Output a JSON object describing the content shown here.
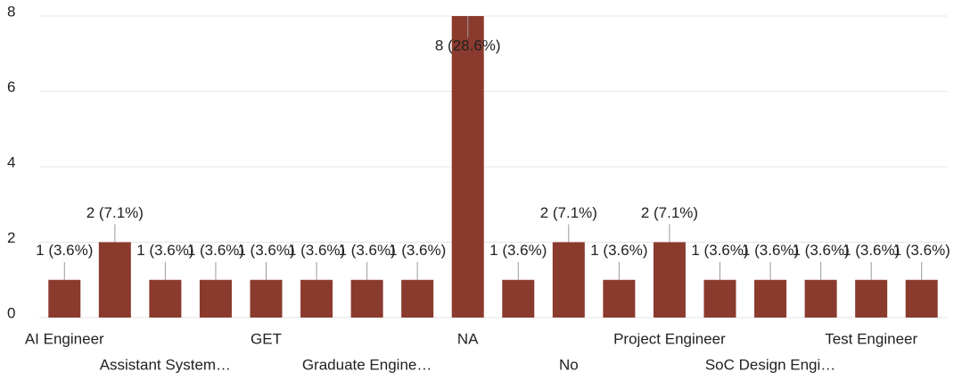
{
  "chart_data": {
    "type": "bar",
    "categories": [
      "AI Engineer",
      null,
      "Assistant System…",
      null,
      "GET",
      null,
      "Graduate Engine…",
      null,
      "NA",
      null,
      "No",
      null,
      "Project Engineer",
      null,
      "SoC Design Engi…",
      null,
      "Test Engineer",
      null
    ],
    "values": [
      1,
      2,
      1,
      1,
      1,
      1,
      1,
      1,
      8,
      1,
      2,
      1,
      2,
      1,
      1,
      1,
      1,
      1
    ],
    "value_labels": [
      "1 (3.6%)",
      "2 (7.1%)",
      "1 (3.6%)",
      "1 (3.6%)",
      "1 (3.6%)",
      "1 (3.6%)",
      "1 (3.6%)",
      "1 (3.6%)",
      "8 (28.6%)",
      "1 (3.6%)",
      "2 (7.1%)",
      "1 (3.6%)",
      "2 (7.1%)",
      "1 (3.6%)",
      "1 (3.6%)",
      "1 (3.6%)",
      "1 (3.6%)",
      "1 (3.6%)"
    ],
    "color": "#8b3a2e",
    "ylim": [
      0,
      8
    ],
    "yticks": [
      0,
      2,
      4,
      6,
      8
    ],
    "grid": true
  }
}
